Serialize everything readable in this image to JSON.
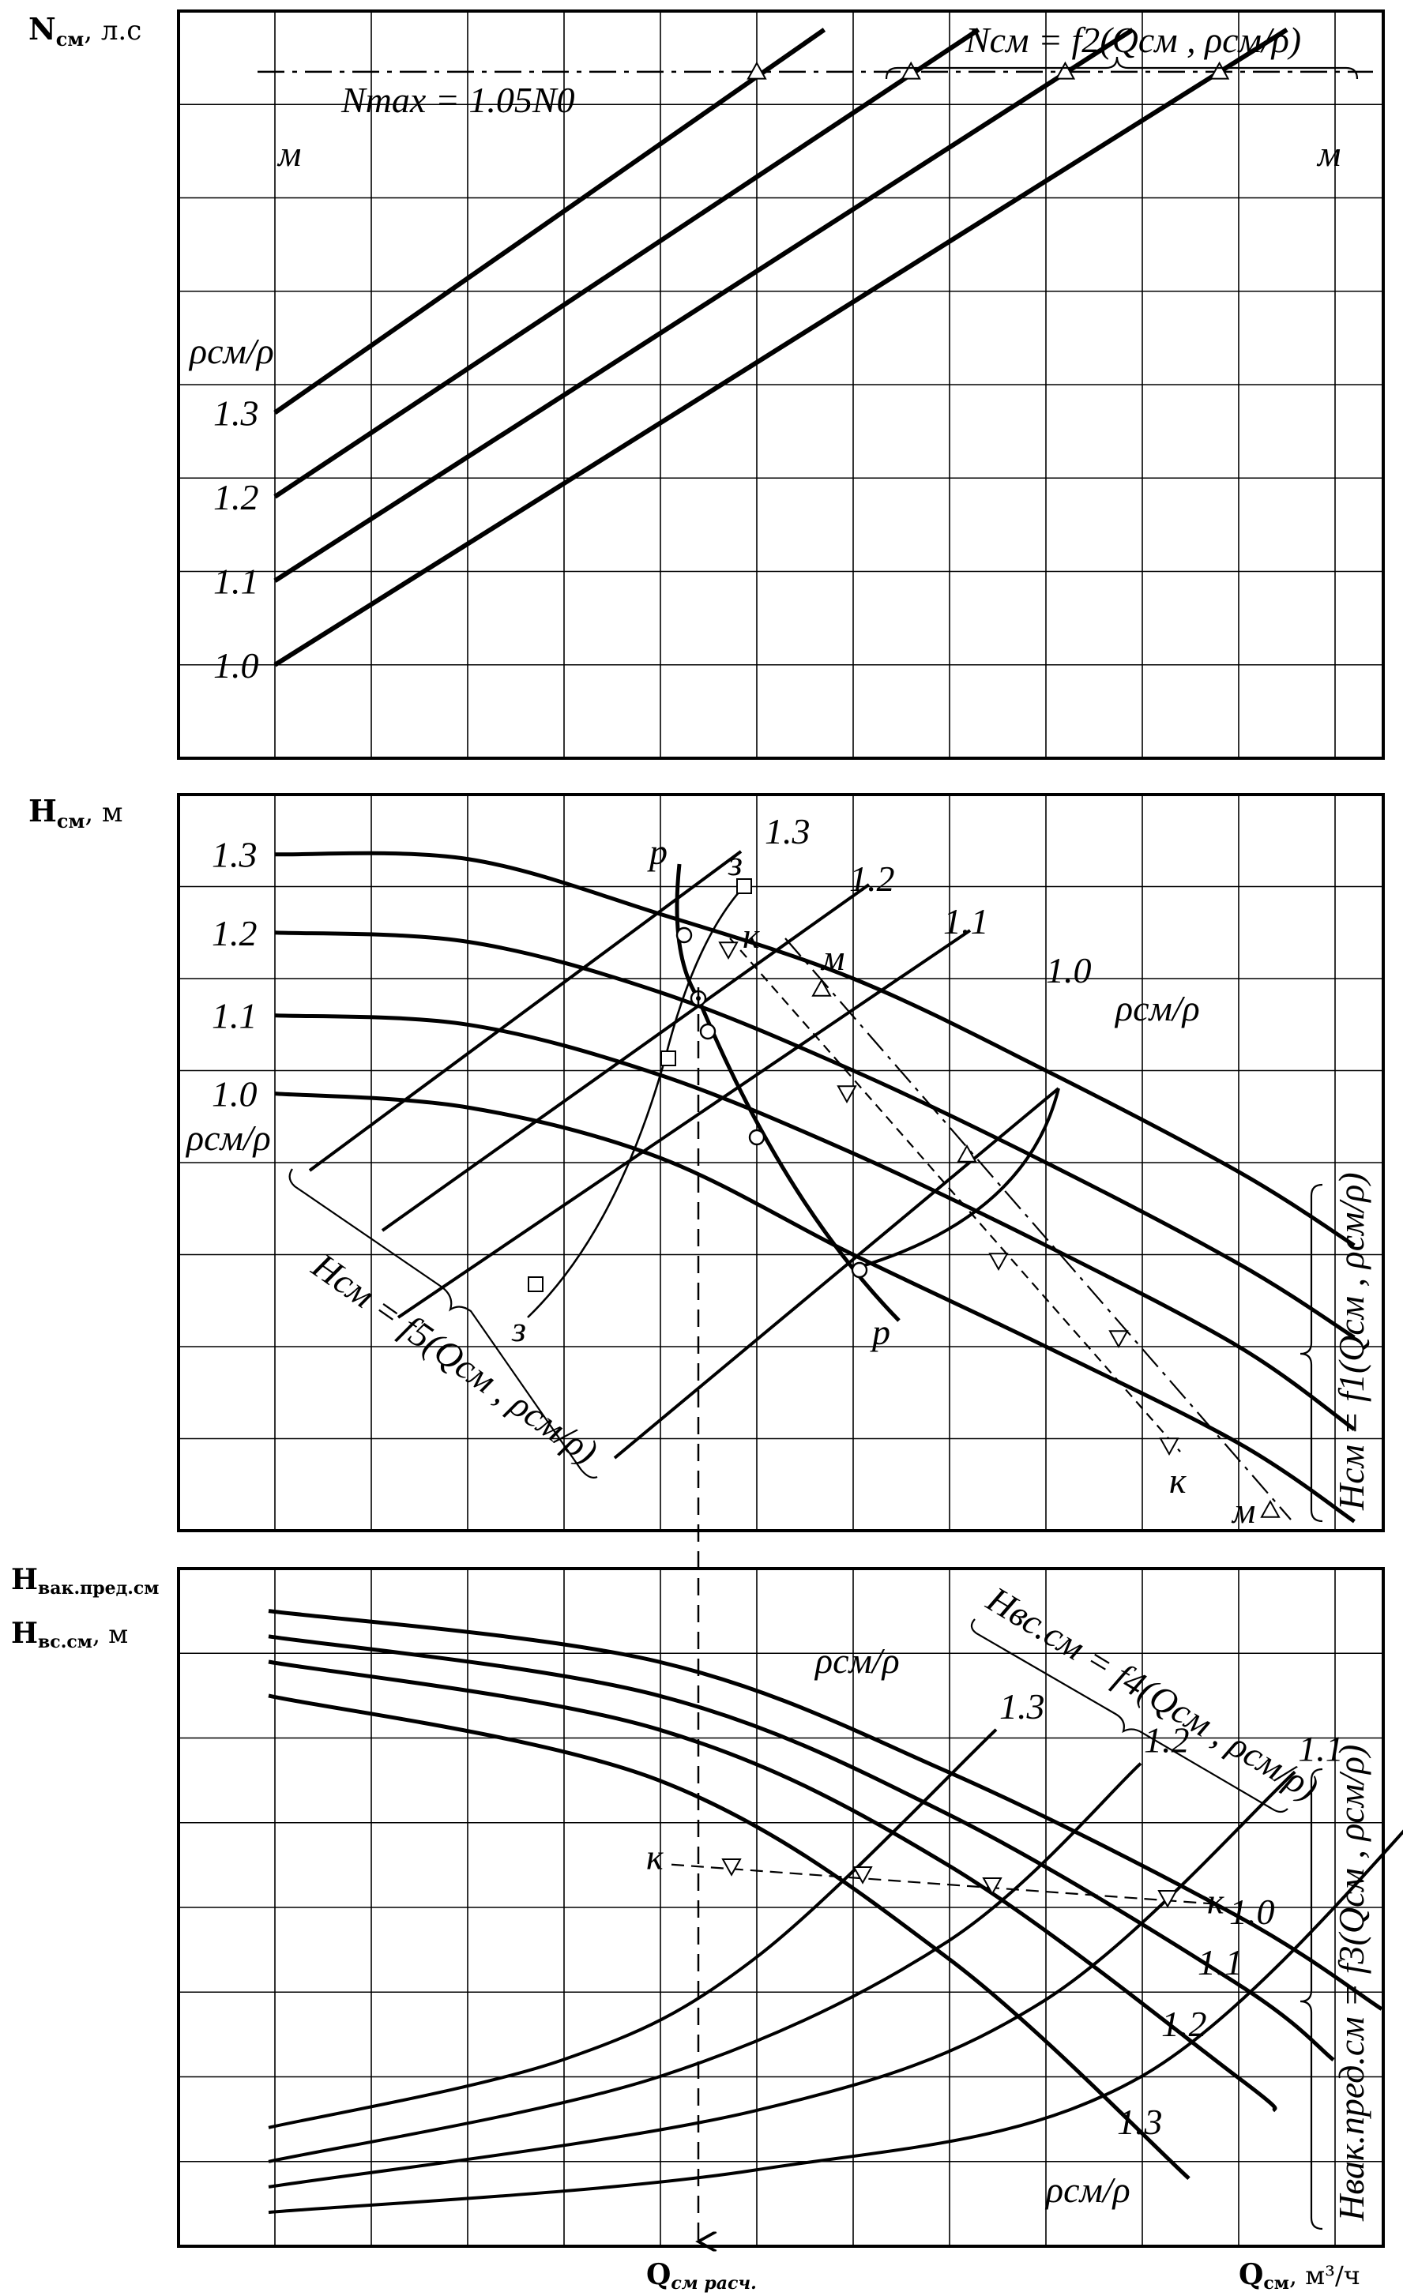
{
  "colors": {
    "ink": "#000000",
    "paper": "#ffffff"
  },
  "chart_data": [
    {
      "type": "line",
      "panel": "top",
      "ylabel": {
        "main": "N",
        "sub": "см",
        "unit": ", л.с"
      },
      "legend_title": "ρсм/ρ",
      "family_label": "Nсм = f2(Qсм , ρсм/ρ)",
      "limit_line": {
        "label": "Nmax = 1.05N0",
        "marker": "м"
      },
      "grid": true,
      "series": [
        {
          "name": "1.3",
          "x": [
            1,
            6.7
          ],
          "y": [
            3.7,
            7.8
          ]
        },
        {
          "name": "1.2",
          "x": [
            1,
            8.3
          ],
          "y": [
            2.8,
            7.8
          ]
        },
        {
          "name": "1.1",
          "x": [
            1,
            9.9
          ],
          "y": [
            1.9,
            7.8
          ]
        },
        {
          "name": "1.0",
          "x": [
            1,
            11.5
          ],
          "y": [
            1.0,
            7.8
          ]
        }
      ],
      "limit_points": {
        "x": [
          6.0,
          7.6,
          9.2,
          10.8
        ],
        "y": [
          7.35,
          7.35,
          7.35,
          7.35
        ]
      }
    },
    {
      "type": "line",
      "panel": "middle",
      "ylabel": {
        "main": "H",
        "sub": "см",
        "unit": ", м"
      },
      "legend_title": "ρсм/ρ",
      "family_label_left": "Hсм = f5(Qсм , ρсм/ρ)",
      "family_label_right": "Hсм = f1(Qсм , ρсм/ρ)",
      "curve_labels": {
        "p": "р",
        "z": "з",
        "k": "к",
        "m": "м"
      },
      "grid": true,
      "series": [
        {
          "name": "1.3",
          "x": [
            1,
            3,
            5,
            7,
            9,
            11,
            12.2
          ],
          "y": [
            7.35,
            7.3,
            6.7,
            6.0,
            5.0,
            3.9,
            3.1
          ]
        },
        {
          "name": "1.2",
          "x": [
            1,
            3,
            5,
            7,
            9,
            11,
            12.2
          ],
          "y": [
            6.5,
            6.4,
            5.85,
            5.0,
            4.0,
            2.9,
            2.1
          ]
        },
        {
          "name": "1.1",
          "x": [
            1,
            3,
            5,
            7,
            9,
            11,
            12.2
          ],
          "y": [
            5.6,
            5.5,
            4.95,
            4.1,
            3.1,
            2.0,
            1.1
          ]
        },
        {
          "name": "1.0",
          "x": [
            1,
            3,
            5,
            7,
            9,
            11,
            12.2
          ],
          "y": [
            4.75,
            4.6,
            4.05,
            3.0,
            2.0,
            0.95,
            0.1
          ]
        }
      ],
      "point_labels": [
        "1.3",
        "1.2",
        "1.1",
        "1.0"
      ],
      "calc_x": 5.6
    },
    {
      "type": "line",
      "panel": "bottom",
      "ylabel": {
        "line1": "Hвак.пред.см",
        "line2": "Hвс.см",
        "unit": ", м"
      },
      "xlabel": {
        "main": "Q",
        "sub": "см",
        "unit": ", м³/ч"
      },
      "calc_label": {
        "main": "Q",
        "sub": "см расч."
      },
      "legend_title": "ρсм/ρ",
      "family_label_upper": "Hвс.см = f4(Qсм , ρсм/ρ)",
      "family_label_right": "Hвак.пред.см = f3(Qсм , ρсм/ρ)",
      "marker": "к",
      "grid": true,
      "descending": [
        {
          "name": "1.0",
          "x": [
            1,
            4,
            7,
            10,
            11.5
          ],
          "y": [
            7.5,
            6.9,
            5.6,
            3.9,
            2.8
          ]
        },
        {
          "name": "1.1",
          "x": [
            1,
            4,
            7,
            10,
            11.0
          ],
          "y": [
            7.2,
            6.5,
            5.1,
            3.1,
            2.2
          ]
        },
        {
          "name": "1.2",
          "x": [
            1,
            4,
            7,
            10,
            10.4
          ],
          "y": [
            6.9,
            6.1,
            4.5,
            2.0,
            1.6
          ]
        },
        {
          "name": "1.3",
          "x": [
            1,
            4,
            7,
            9.5
          ],
          "y": [
            6.5,
            5.5,
            3.4,
            0.8
          ]
        }
      ],
      "ascending": [
        {
          "name": "1.3",
          "x": [
            1,
            3,
            5,
            7.5
          ],
          "y": [
            1.4,
            2.2,
            3.4,
            6.1
          ]
        },
        {
          "name": "1.2",
          "x": [
            1,
            4,
            7,
            9.0
          ],
          "y": [
            1.0,
            2.0,
            3.6,
            5.7
          ]
        },
        {
          "name": "1.1",
          "x": [
            1,
            5,
            8,
            10.6
          ],
          "y": [
            0.7,
            1.6,
            2.9,
            5.6
          ]
        },
        {
          "name": "1.0",
          "x": [
            1,
            5,
            9,
            12.3
          ],
          "y": [
            0.4,
            0.9,
            2.0,
            5.6
          ]
        }
      ],
      "k_line_y": 4.45
    }
  ]
}
